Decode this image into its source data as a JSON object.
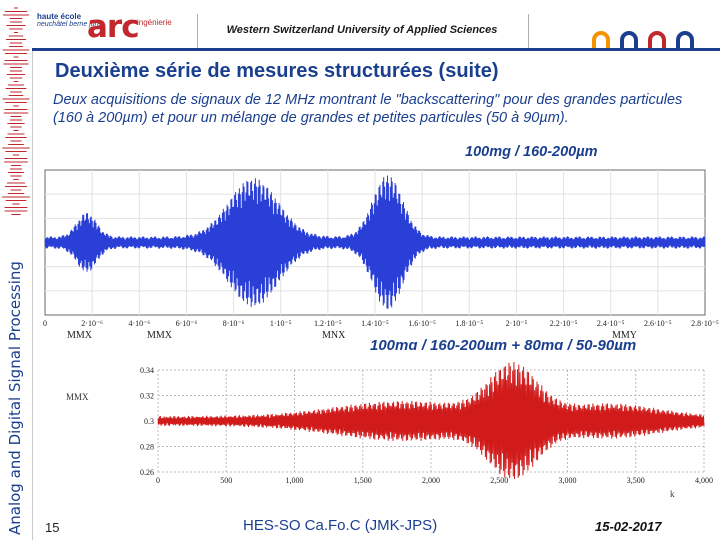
{
  "header": {
    "school_line1": "haute école",
    "school_line2": "neuchâtel berne jura",
    "logo_text": "arc",
    "logo_sub": "ingénierie",
    "university": "Western Switzerland University of Applied Sciences"
  },
  "sidebar": {
    "caption": "Analog and Digital Signal Processing"
  },
  "slide": {
    "title": "Deuxième série de mesures structurées (suite)",
    "intro": "Deux acquisitions de signaux de 12 MHz montrant le \"backscattering\" pour des grandes particules (160 à 200µm) et pour un mélange de grandes et petites particules (50 à 90µm)."
  },
  "colors": {
    "accent": "#1b3f8f",
    "brand_red": "#c1272d",
    "signal_blue": "#2a3fd6",
    "signal_red": "#d11a1a"
  },
  "chart_data": [
    {
      "type": "line",
      "label": "100mg / 160-200µm",
      "series_color": "#2a3fd6",
      "x_tick_labels": [
        "0",
        "2·10⁻⁶",
        "4·10⁻⁶",
        "6·10⁻⁶",
        "8·10⁻⁶",
        "1·10⁻⁵",
        "1.2·10⁻⁵",
        "1.4·10⁻⁵",
        "1.6·10⁻⁵",
        "1.8·10⁻⁵",
        "2·10⁻⁵",
        "2.2·10⁻⁵",
        "2.4·10⁻⁵",
        "2.6·10⁻⁵",
        "2.8·10⁻⁵"
      ],
      "xlim": [
        0,
        2.85e-05
      ],
      "bursts": [
        {
          "center": 9e-06,
          "width": 1.5e-06,
          "amp": 0.85
        },
        {
          "center": 1.8e-06,
          "width": 6e-07,
          "amp": 0.35
        },
        {
          "center": 1.48e-05,
          "width": 9e-07,
          "amp": 0.9
        }
      ],
      "bottom_labels": [
        "MMX",
        "MMX",
        "MNX",
        "MMY"
      ]
    },
    {
      "type": "line",
      "label": "100mg / 160-200µm + 80mg / 50-90µm",
      "series_color": "#d11a1a",
      "y_tick_labels": [
        "0.34",
        "0.32",
        "0.3",
        "0.28",
        "0.26"
      ],
      "ylim": [
        0.26,
        0.34
      ],
      "ylabel": "MMX",
      "x_tick_labels": [
        "0",
        "500",
        "1,000",
        "1,500",
        "2,000",
        "2,500",
        "3,000",
        "3,500",
        "4,000"
      ],
      "xlim": [
        0,
        4000
      ],
      "xlabel": "k",
      "bursts": [
        {
          "center": 2600,
          "width": 250,
          "amp": 0.038
        },
        {
          "center": 1800,
          "width": 700,
          "amp": 0.012
        },
        {
          "center": 3300,
          "width": 500,
          "amp": 0.01
        }
      ]
    }
  ],
  "footer": {
    "page_number": "15",
    "center": "HES-SO  Ca.Fo.C  (JMK-JPS)",
    "date": "15-02-2017"
  }
}
